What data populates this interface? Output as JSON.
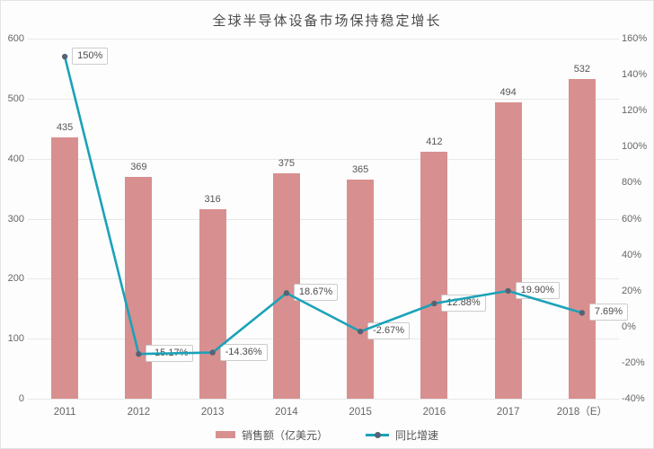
{
  "chart_data": {
    "type": "bar",
    "subtype": "bar-line-combo",
    "title": "全球半导体设备市场保持稳定增长",
    "categories": [
      "2011",
      "2012",
      "2013",
      "2014",
      "2015",
      "2016",
      "2017",
      "2018（E）"
    ],
    "series": [
      {
        "name": "销售额（亿美元）",
        "type": "bar",
        "axis": "left",
        "color": "#d88f8f",
        "values": [
          435,
          369,
          316,
          375,
          365,
          412,
          494,
          532
        ],
        "value_labels": [
          "435",
          "369",
          "316",
          "375",
          "365",
          "412",
          "494",
          "532"
        ]
      },
      {
        "name": "同比增速",
        "type": "line",
        "axis": "right",
        "color": "#1aa2b8",
        "marker_color": "#546475",
        "values": [
          150,
          -15.17,
          -14.36,
          18.67,
          -2.67,
          12.88,
          19.9,
          7.69
        ],
        "value_labels": [
          "150%",
          "-15.17%",
          "-14.36%",
          "18.67%",
          "-2.67%",
          "12.88%",
          "19.90%",
          "7.69%"
        ]
      }
    ],
    "left_axis": {
      "min": 0,
      "max": 600,
      "step": 100,
      "ticks": [
        {
          "v": 0,
          "label": "0"
        },
        {
          "v": 100,
          "label": "100"
        },
        {
          "v": 200,
          "label": "200"
        },
        {
          "v": 300,
          "label": "300"
        },
        {
          "v": 400,
          "label": "400"
        },
        {
          "v": 500,
          "label": "500"
        },
        {
          "v": 600,
          "label": "600"
        }
      ]
    },
    "right_axis": {
      "min": -40,
      "max": 160,
      "step": 20,
      "ticks": [
        {
          "v": -40,
          "label": "-40%"
        },
        {
          "v": -20,
          "label": "-20%"
        },
        {
          "v": 0,
          "label": "0%"
        },
        {
          "v": 20,
          "label": "20%"
        },
        {
          "v": 40,
          "label": "40%"
        },
        {
          "v": 60,
          "label": "60%"
        },
        {
          "v": 80,
          "label": "80%"
        },
        {
          "v": 100,
          "label": "100%"
        },
        {
          "v": 120,
          "label": "120%"
        },
        {
          "v": 140,
          "label": "140%"
        },
        {
          "v": 160,
          "label": "160%"
        }
      ]
    },
    "grid": true,
    "legend_position": "bottom",
    "colors": {
      "background": "#fdfdfd",
      "gridline": "#e8e8e8",
      "text": "#595959",
      "bar": "#d88f8f",
      "line": "#1aa2b8",
      "marker": "#546475"
    }
  }
}
